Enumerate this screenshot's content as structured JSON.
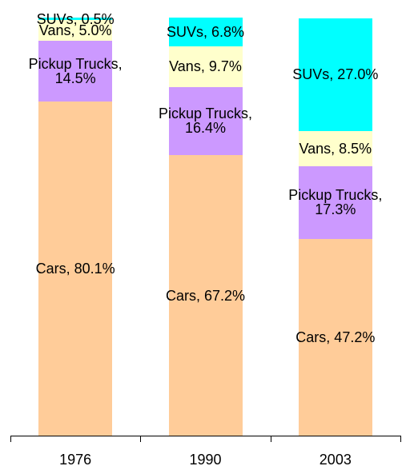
{
  "chart_data": {
    "type": "stacked-bar",
    "categories": [
      "1976",
      "1990",
      "2003"
    ],
    "ylim": [
      0,
      100
    ],
    "series": [
      {
        "name": "Cars",
        "color": "#ffcc99",
        "values": [
          80.1,
          67.2,
          47.2
        ],
        "value_labels": [
          "Cars, 80.1%",
          "Cars, 67.2%",
          "Cars, 47.2%"
        ]
      },
      {
        "name": "Pickup Trucks",
        "color": "#cc99ff",
        "values": [
          14.5,
          16.4,
          17.3
        ],
        "value_labels": [
          "Pickup Trucks, 14.5%",
          "Pickup Trucks, 16.4%",
          "Pickup Trucks, 17.3%"
        ]
      },
      {
        "name": "Vans",
        "color": "#ffffcc",
        "values": [
          5.0,
          9.7,
          8.5
        ],
        "value_labels": [
          "Vans, 5.0%",
          "Vans, 9.7%",
          "Vans, 8.5%"
        ]
      },
      {
        "name": "SUVs",
        "color": "#00ffff",
        "values": [
          0.5,
          6.8,
          27.0
        ],
        "value_labels": [
          "SUVs, 0.5%",
          "SUVs, 6.8%",
          "SUVs, 27.0%"
        ]
      }
    ]
  }
}
